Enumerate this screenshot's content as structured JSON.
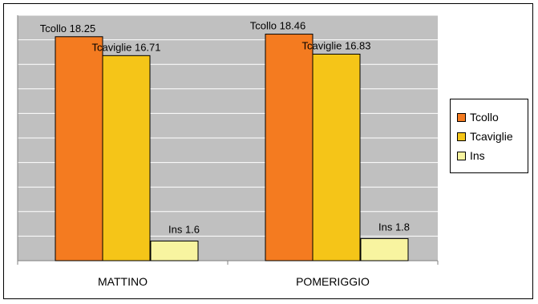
{
  "chart_data": {
    "type": "bar",
    "categories": [
      "MATTINO",
      "POMERIGGIO"
    ],
    "series": [
      {
        "name": "Tcollo",
        "values": [
          18.25,
          18.46
        ],
        "color": "#f47b20",
        "labels": [
          "Tcollo 18.25",
          "Tcollo 18.46"
        ]
      },
      {
        "name": "Tcaviglie",
        "values": [
          16.71,
          16.83
        ],
        "color": "#f5c518",
        "labels": [
          "Tcaviglie 16.71",
          "Tcaviglie 16.83"
        ]
      },
      {
        "name": "Ins",
        "values": [
          1.6,
          1.8
        ],
        "color": "#f8f4a0",
        "labels": [
          "Ins 1.6",
          "Ins 1.8"
        ]
      }
    ],
    "ylim": [
      0,
      20
    ],
    "grid": true,
    "legend": "right",
    "plot_background": "#c0c0c0"
  }
}
